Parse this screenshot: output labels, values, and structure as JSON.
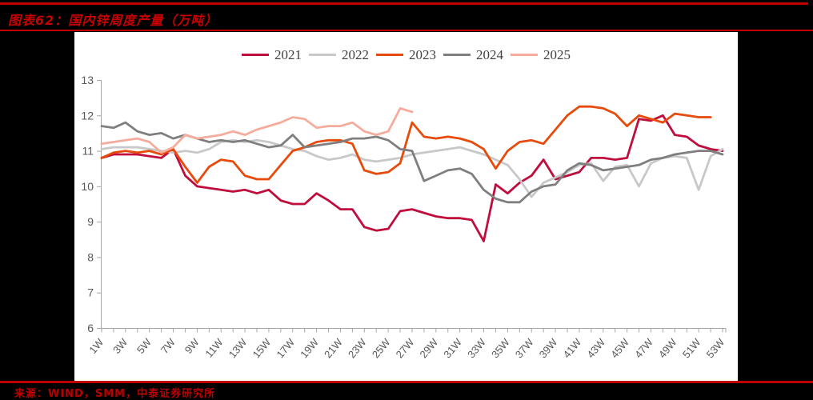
{
  "header": {
    "title": "图表62：国内锌周度产量（万吨）"
  },
  "footer": {
    "source": "来源：WIND，SMM，中泰证券研究所"
  },
  "colors": {
    "accent_rule": "#C00000",
    "title_text": "#C80000",
    "footer_text": "#B80000",
    "axis_line": "#A6A6A6",
    "tick_label": "#595959",
    "legend_label": "#404040",
    "page_background": "#FFFFFF",
    "outer_background": "#000000"
  },
  "chart_data": {
    "type": "line",
    "title": "国内锌周度产量（万吨）",
    "xlabel": "",
    "ylabel": "",
    "x_unit": "week",
    "x_range": [
      1,
      53
    ],
    "ylim": [
      6,
      13
    ],
    "y_ticks": [
      6,
      7,
      8,
      9,
      10,
      11,
      12,
      13
    ],
    "x_tick_labels": [
      "1W",
      "3W",
      "5W",
      "7W",
      "9W",
      "11W",
      "13W",
      "15W",
      "17W",
      "19W",
      "21W",
      "23W",
      "25W",
      "27W",
      "29W",
      "31W",
      "33W",
      "35W",
      "37W",
      "39W",
      "41W",
      "43W",
      "45W",
      "47W",
      "49W",
      "51W",
      "53W"
    ],
    "grid": false,
    "legend_position": "top",
    "legend_entries": [
      "2021",
      "2022",
      "2023",
      "2024",
      "2025"
    ],
    "series": [
      {
        "name": "2021",
        "color": "#BF0D3D",
        "start_week": 1,
        "values": [
          10.8,
          10.9,
          10.9,
          10.9,
          10.85,
          10.8,
          11.05,
          10.3,
          10.0,
          9.95,
          9.9,
          9.85,
          9.9,
          9.8,
          9.9,
          9.6,
          9.5,
          9.5,
          9.8,
          9.6,
          9.35,
          9.35,
          8.85,
          8.75,
          8.8,
          9.3,
          9.35,
          9.25,
          9.15,
          9.1,
          9.1,
          9.05,
          8.45,
          10.05,
          9.8,
          10.1,
          10.3,
          10.75,
          10.2,
          10.3,
          10.4,
          10.8,
          10.8,
          10.75,
          10.8,
          11.9,
          11.85,
          12.0,
          11.45,
          11.4,
          11.15,
          11.05,
          11.0
        ]
      },
      {
        "name": "2022",
        "color": "#C8C8C8",
        "start_week": 1,
        "values": [
          11.05,
          11.1,
          11.1,
          11.1,
          11.05,
          11.0,
          10.95,
          11.0,
          10.95,
          11.05,
          11.25,
          11.3,
          11.25,
          11.3,
          11.25,
          11.15,
          11.05,
          11.0,
          10.85,
          10.75,
          10.8,
          10.9,
          10.75,
          10.7,
          10.75,
          10.8,
          10.9,
          10.95,
          11.0,
          11.05,
          11.1,
          11.0,
          10.9,
          10.75,
          10.6,
          10.2,
          9.7,
          10.1,
          10.25,
          10.4,
          10.6,
          10.65,
          10.15,
          10.55,
          10.6,
          10.0,
          10.65,
          10.8,
          10.85,
          10.8,
          9.9,
          10.85,
          11.05
        ]
      },
      {
        "name": "2023",
        "color": "#E64B0B",
        "start_week": 1,
        "values": [
          10.8,
          10.95,
          11.0,
          10.95,
          11.0,
          10.9,
          11.05,
          10.55,
          10.1,
          10.55,
          10.75,
          10.7,
          10.3,
          10.2,
          10.2,
          10.6,
          11.0,
          11.1,
          11.25,
          11.3,
          11.3,
          11.2,
          10.45,
          10.35,
          10.4,
          10.65,
          11.8,
          11.4,
          11.35,
          11.4,
          11.35,
          11.25,
          11.05,
          10.5,
          11.0,
          11.25,
          11.3,
          11.2,
          11.6,
          12.0,
          12.25,
          12.25,
          12.2,
          12.05,
          11.7,
          12.0,
          11.9,
          11.8,
          12.05,
          12.0,
          11.95,
          11.95
        ]
      },
      {
        "name": "2024",
        "color": "#7F7F7F",
        "start_week": 1,
        "values": [
          11.7,
          11.65,
          11.8,
          11.55,
          11.45,
          11.5,
          11.35,
          11.45,
          11.35,
          11.25,
          11.3,
          11.25,
          11.3,
          11.2,
          11.1,
          11.15,
          11.45,
          11.1,
          11.15,
          11.2,
          11.25,
          11.35,
          11.35,
          11.4,
          11.3,
          11.05,
          11.0,
          10.15,
          10.3,
          10.45,
          10.5,
          10.35,
          9.9,
          9.65,
          9.55,
          9.55,
          9.85,
          10.0,
          10.05,
          10.45,
          10.65,
          10.6,
          10.45,
          10.5,
          10.55,
          10.6,
          10.75,
          10.8,
          10.9,
          10.95,
          11.0,
          11.0,
          10.9
        ]
      },
      {
        "name": "2025",
        "color": "#F6AC9C",
        "start_week": 1,
        "values": [
          11.2,
          11.25,
          11.3,
          11.35,
          11.25,
          10.95,
          11.1,
          11.45,
          11.35,
          11.4,
          11.45,
          11.55,
          11.45,
          11.6,
          11.7,
          11.8,
          11.95,
          11.9,
          11.65,
          11.7,
          11.7,
          11.8,
          11.55,
          11.45,
          11.55,
          12.2,
          12.1
        ]
      }
    ]
  }
}
